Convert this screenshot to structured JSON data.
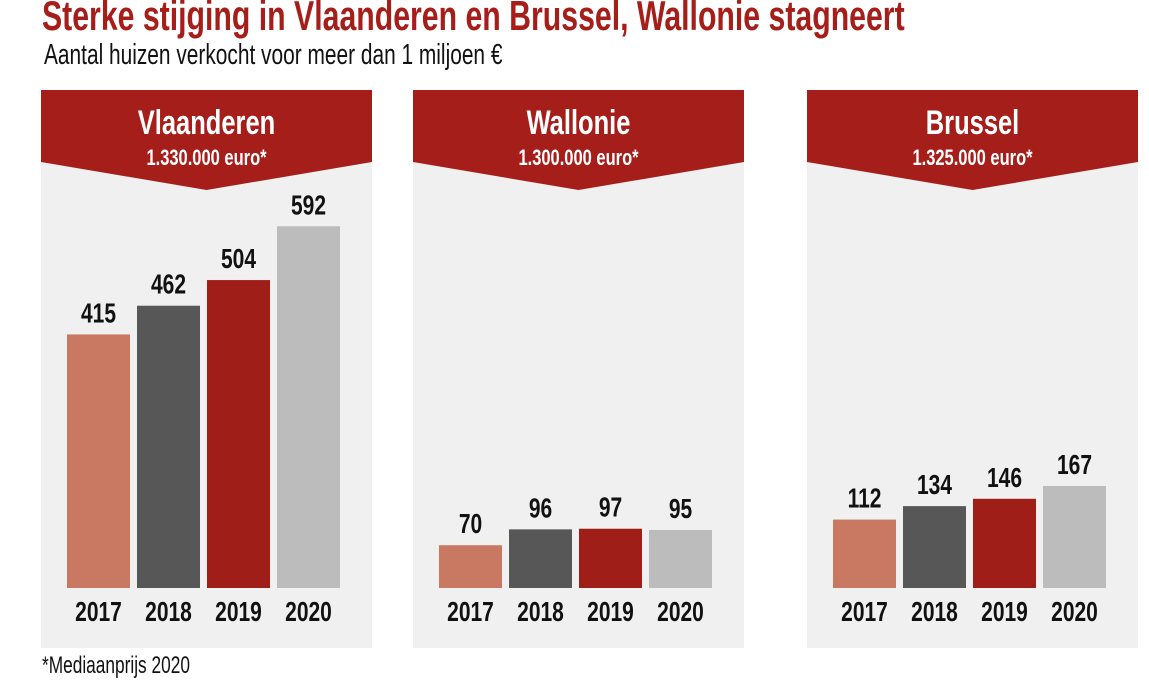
{
  "title": "Sterke stijging in Vlaanderen en Brussel, Wallonie stagneert",
  "subtitle": "Aantal huizen verkocht voor meer dan 1 miljoen €",
  "footnote": "*Mediaanprijs 2020",
  "colors": {
    "2017": "#c97862",
    "2018": "#575757",
    "2019": "#a01e18",
    "2020": "#bcbcbc",
    "banner": "#a61e1a",
    "panel": "#f0f0f0"
  },
  "chart_data": [
    {
      "type": "bar",
      "title": "Vlaanderen",
      "subtitle": "1.330.000 euro*",
      "categories": [
        "2017",
        "2018",
        "2019",
        "2020"
      ],
      "values": [
        415,
        462,
        504,
        592
      ]
    },
    {
      "type": "bar",
      "title": "Wallonie",
      "subtitle": "1.300.000 euro*",
      "categories": [
        "2017",
        "2018",
        "2019",
        "2020"
      ],
      "values": [
        70,
        96,
        97,
        95
      ]
    },
    {
      "type": "bar",
      "title": "Brussel",
      "subtitle": "1.325.000 euro*",
      "categories": [
        "2017",
        "2018",
        "2019",
        "2020"
      ],
      "values": [
        112,
        134,
        146,
        167
      ]
    }
  ]
}
